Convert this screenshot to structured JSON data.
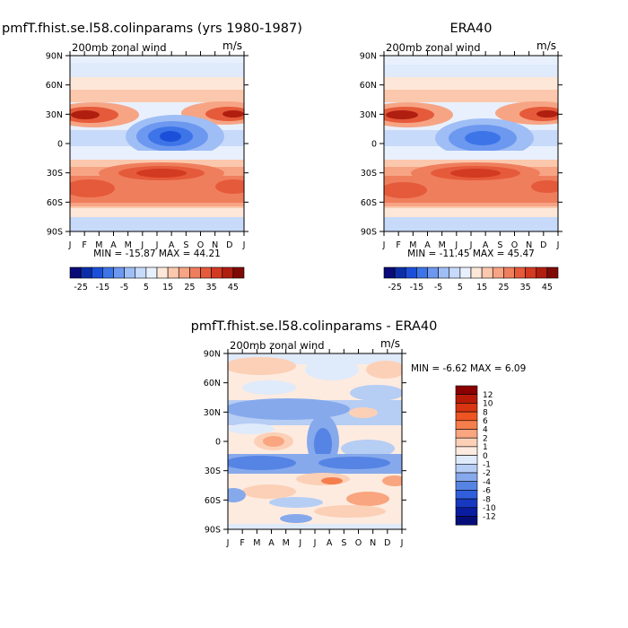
{
  "months": [
    "J",
    "F",
    "M",
    "A",
    "M",
    "J",
    "J",
    "A",
    "S",
    "O",
    "N",
    "D",
    "J"
  ],
  "lat_ticks": [
    "90N",
    "60N",
    "30N",
    "0",
    "30S",
    "60S",
    "90S"
  ],
  "panels": [
    {
      "title": "pmfT.fhist.se.l58.colinparams (yrs 1980-1987)",
      "subtitle": "200mb  zonal wind",
      "units": "m/s",
      "stats": "MIN = -15.87 MAX =  44.21"
    },
    {
      "title": "ERA40",
      "subtitle": "200mb  zonal wind",
      "units": "m/s",
      "stats": "MIN = -11.45 MAX =  45.47"
    },
    {
      "title": "pmfT.fhist.se.l58.colinparams - ERA40",
      "subtitle": "200mb  zonal wind",
      "units": "m/s",
      "stats": "MIN =   -6.62 MAX =   6.09"
    }
  ],
  "colorbar_top": {
    "labels": [
      "-25",
      "-15",
      "-5",
      "5",
      "15",
      "25",
      "35",
      "45"
    ],
    "colors": [
      "#0a0a78",
      "#0b2ea8",
      "#1c4fd9",
      "#3d74e8",
      "#6d98f0",
      "#9fbef5",
      "#c8dafa",
      "#e8f0fd",
      "#fde7d8",
      "#fbc8ad",
      "#f6a484",
      "#ef7e5d",
      "#e55a3a",
      "#d33a22",
      "#b01e10",
      "#7f0a05"
    ]
  },
  "colorbar_diff": {
    "labels": [
      "12",
      "10",
      "8",
      "6",
      "4",
      "2",
      "1",
      "0",
      "-1",
      "-2",
      "-4",
      "-6",
      "-8",
      "-10",
      "-12"
    ],
    "colors": [
      "#8b0000",
      "#b81a08",
      "#d93512",
      "#ee5522",
      "#f57e4d",
      "#f9a57f",
      "#fcd0b6",
      "#fdebe0",
      "#dfeafb",
      "#b6cdf4",
      "#86a9ec",
      "#5684e4",
      "#2f5fdc",
      "#1739c0",
      "#0a1ca0",
      "#050e78"
    ]
  },
  "chart_data": [
    {
      "type": "heatmap",
      "title": "pmfT.fhist.se.l58.colinparams (yrs 1980-1987)",
      "subtitle": "200mb  zonal wind",
      "units": "m/s",
      "x": [
        "J",
        "F",
        "M",
        "A",
        "M",
        "J",
        "J",
        "A",
        "S",
        "O",
        "N",
        "D",
        "J"
      ],
      "y": [
        "90N",
        "60N",
        "30N",
        "0",
        "30S",
        "60S",
        "90S"
      ],
      "min": -15.87,
      "max": 44.21,
      "levels": [
        -25,
        -20,
        -15,
        -10,
        -5,
        0,
        5,
        10,
        15,
        20,
        25,
        30,
        35,
        40,
        45
      ],
      "features": [
        {
          "lat": 30,
          "month": "J",
          "value": 38
        },
        {
          "lat": 30,
          "month": "D",
          "value": 36
        },
        {
          "lat": 5,
          "month": "J",
          "value": -15
        },
        {
          "lat": -30,
          "month": "J",
          "value": 40
        },
        {
          "lat": -45,
          "month": "J",
          "value": 30
        },
        {
          "lat": -45,
          "month": "D",
          "value": 32
        }
      ]
    },
    {
      "type": "heatmap",
      "title": "ERA40",
      "subtitle": "200mb  zonal wind",
      "units": "m/s",
      "x": [
        "J",
        "F",
        "M",
        "A",
        "M",
        "J",
        "J",
        "A",
        "S",
        "O",
        "N",
        "D",
        "J"
      ],
      "y": [
        "90N",
        "60N",
        "30N",
        "0",
        "30S",
        "60S",
        "90S"
      ],
      "min": -11.45,
      "max": 45.47,
      "levels": [
        -25,
        -20,
        -15,
        -10,
        -5,
        0,
        5,
        10,
        15,
        20,
        25,
        30,
        35,
        40,
        45
      ],
      "features": [
        {
          "lat": 30,
          "month": "J",
          "value": 40
        },
        {
          "lat": 30,
          "month": "D",
          "value": 38
        },
        {
          "lat": 5,
          "month": "J",
          "value": -10
        },
        {
          "lat": -30,
          "month": "J",
          "value": 42
        },
        {
          "lat": -45,
          "month": "J",
          "value": 30
        },
        {
          "lat": -45,
          "month": "D",
          "value": 30
        }
      ]
    },
    {
      "type": "heatmap",
      "title": "pmfT.fhist.se.l58.colinparams - ERA40",
      "subtitle": "200mb  zonal wind",
      "units": "m/s",
      "x": [
        "J",
        "F",
        "M",
        "A",
        "M",
        "J",
        "J",
        "A",
        "S",
        "O",
        "N",
        "D",
        "J"
      ],
      "y": [
        "90N",
        "60N",
        "30N",
        "0",
        "30S",
        "60S",
        "90S"
      ],
      "min": -6.62,
      "max": 6.09,
      "levels": [
        -12,
        -10,
        -8,
        -6,
        -4,
        -2,
        -1,
        0,
        1,
        2,
        4,
        6,
        8,
        10,
        12
      ]
    }
  ]
}
